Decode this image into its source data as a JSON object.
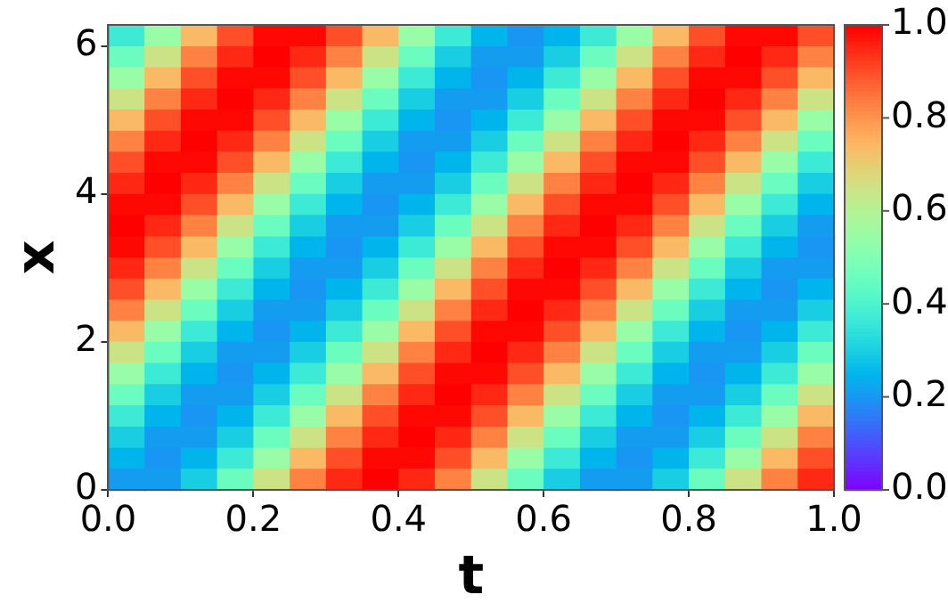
{
  "chart_data": {
    "type": "heatmap",
    "xlabel": "t",
    "ylabel": "x",
    "x": [
      0.025,
      0.075,
      0.125,
      0.175,
      0.225,
      0.275,
      0.325,
      0.375,
      0.425,
      0.475,
      0.525,
      0.575,
      0.625,
      0.675,
      0.725,
      0.775,
      0.825,
      0.875,
      0.925,
      0.975
    ],
    "y": [
      6.14,
      5.85,
      5.57,
      5.28,
      5.0,
      4.71,
      4.43,
      4.14,
      3.86,
      3.57,
      3.28,
      3.0,
      2.71,
      2.43,
      2.14,
      1.86,
      1.57,
      1.29,
      1.0,
      0.71,
      0.43,
      0.14
    ],
    "xlim": [
      0,
      1
    ],
    "xticks": [
      {
        "value": 0,
        "label": "0.0"
      },
      {
        "value": 0.2,
        "label": "0.2"
      },
      {
        "value": 0.4,
        "label": "0.4"
      },
      {
        "value": 0.6,
        "label": "0.6"
      },
      {
        "value": 0.8,
        "label": "0.8"
      },
      {
        "value": 1,
        "label": "1.0"
      }
    ],
    "ylim": [
      0,
      6.2832
    ],
    "yticks": [
      0,
      2,
      4,
      6
    ],
    "clim": [
      0,
      1
    ],
    "cticks": [
      {
        "value": 0,
        "label": "0.0"
      },
      {
        "value": 0.2,
        "label": "0.2"
      },
      {
        "value": 0.4,
        "label": "0.4"
      },
      {
        "value": 0.6,
        "label": "0.6"
      },
      {
        "value": 0.8,
        "label": "0.8"
      },
      {
        "value": 1,
        "label": "1.0"
      }
    ],
    "cells": [
      [
        0.37,
        0.55,
        0.74,
        0.9,
        0.99,
        0.99,
        0.9,
        0.74,
        0.55,
        0.37,
        0.25,
        0.2,
        0.25,
        0.37,
        0.55,
        0.74,
        0.9,
        0.99,
        0.99,
        0.9
      ],
      [
        0.46,
        0.65,
        0.83,
        0.95,
        1,
        0.95,
        0.83,
        0.65,
        0.46,
        0.3,
        0.21,
        0.21,
        0.3,
        0.46,
        0.65,
        0.83,
        0.95,
        1,
        0.95,
        0.83
      ],
      [
        0.55,
        0.74,
        0.9,
        0.99,
        0.99,
        0.9,
        0.74,
        0.55,
        0.37,
        0.25,
        0.2,
        0.25,
        0.37,
        0.55,
        0.74,
        0.9,
        0.99,
        0.99,
        0.9,
        0.74
      ],
      [
        0.65,
        0.83,
        0.95,
        1,
        0.95,
        0.83,
        0.65,
        0.46,
        0.3,
        0.21,
        0.21,
        0.3,
        0.46,
        0.65,
        0.83,
        0.95,
        1,
        0.95,
        0.83,
        0.65
      ],
      [
        0.74,
        0.9,
        0.99,
        0.99,
        0.9,
        0.74,
        0.55,
        0.37,
        0.25,
        0.2,
        0.25,
        0.37,
        0.55,
        0.74,
        0.9,
        0.99,
        0.99,
        0.9,
        0.74,
        0.55
      ],
      [
        0.83,
        0.95,
        1,
        0.95,
        0.83,
        0.65,
        0.46,
        0.3,
        0.21,
        0.21,
        0.3,
        0.46,
        0.65,
        0.83,
        0.95,
        1,
        0.95,
        0.83,
        0.65,
        0.46
      ],
      [
        0.9,
        0.99,
        0.99,
        0.9,
        0.74,
        0.55,
        0.37,
        0.25,
        0.2,
        0.25,
        0.37,
        0.55,
        0.74,
        0.9,
        0.99,
        0.99,
        0.9,
        0.74,
        0.55,
        0.37
      ],
      [
        0.95,
        1,
        0.95,
        0.83,
        0.65,
        0.46,
        0.3,
        0.21,
        0.21,
        0.3,
        0.46,
        0.65,
        0.83,
        0.95,
        1,
        0.95,
        0.83,
        0.65,
        0.46,
        0.3
      ],
      [
        0.99,
        0.99,
        0.9,
        0.74,
        0.55,
        0.37,
        0.25,
        0.2,
        0.25,
        0.37,
        0.55,
        0.74,
        0.9,
        0.99,
        0.99,
        0.9,
        0.74,
        0.55,
        0.37,
        0.25
      ],
      [
        1,
        0.95,
        0.83,
        0.65,
        0.46,
        0.3,
        0.21,
        0.21,
        0.3,
        0.46,
        0.65,
        0.83,
        0.95,
        1,
        0.95,
        0.83,
        0.65,
        0.46,
        0.3,
        0.21
      ],
      [
        0.99,
        0.9,
        0.74,
        0.55,
        0.37,
        0.25,
        0.2,
        0.25,
        0.37,
        0.55,
        0.74,
        0.9,
        0.99,
        0.99,
        0.9,
        0.74,
        0.55,
        0.37,
        0.25,
        0.2
      ],
      [
        0.95,
        0.83,
        0.65,
        0.46,
        0.3,
        0.21,
        0.21,
        0.3,
        0.46,
        0.65,
        0.83,
        0.95,
        1,
        0.95,
        0.83,
        0.65,
        0.46,
        0.3,
        0.21,
        0.21
      ],
      [
        0.9,
        0.74,
        0.55,
        0.37,
        0.25,
        0.2,
        0.25,
        0.37,
        0.55,
        0.74,
        0.9,
        0.99,
        0.99,
        0.9,
        0.74,
        0.55,
        0.37,
        0.25,
        0.2,
        0.25
      ],
      [
        0.83,
        0.65,
        0.46,
        0.3,
        0.21,
        0.21,
        0.3,
        0.46,
        0.65,
        0.83,
        0.95,
        1,
        0.95,
        0.83,
        0.65,
        0.46,
        0.3,
        0.21,
        0.21,
        0.3
      ],
      [
        0.74,
        0.55,
        0.37,
        0.25,
        0.2,
        0.25,
        0.37,
        0.55,
        0.74,
        0.9,
        0.99,
        0.99,
        0.9,
        0.74,
        0.55,
        0.37,
        0.25,
        0.2,
        0.25,
        0.37
      ],
      [
        0.65,
        0.46,
        0.3,
        0.21,
        0.21,
        0.3,
        0.46,
        0.65,
        0.83,
        0.95,
        1,
        0.95,
        0.83,
        0.65,
        0.46,
        0.3,
        0.21,
        0.21,
        0.3,
        0.46
      ],
      [
        0.55,
        0.37,
        0.25,
        0.2,
        0.25,
        0.37,
        0.55,
        0.74,
        0.9,
        0.99,
        0.99,
        0.9,
        0.74,
        0.55,
        0.37,
        0.25,
        0.2,
        0.25,
        0.37,
        0.55
      ],
      [
        0.46,
        0.3,
        0.21,
        0.21,
        0.3,
        0.46,
        0.65,
        0.83,
        0.95,
        1,
        0.95,
        0.83,
        0.65,
        0.46,
        0.3,
        0.21,
        0.21,
        0.3,
        0.46,
        0.65
      ],
      [
        0.37,
        0.25,
        0.2,
        0.25,
        0.37,
        0.55,
        0.74,
        0.9,
        0.99,
        0.99,
        0.9,
        0.74,
        0.55,
        0.37,
        0.25,
        0.2,
        0.25,
        0.37,
        0.55,
        0.74
      ],
      [
        0.3,
        0.21,
        0.21,
        0.3,
        0.46,
        0.65,
        0.83,
        0.95,
        1,
        0.95,
        0.83,
        0.65,
        0.46,
        0.3,
        0.21,
        0.21,
        0.3,
        0.46,
        0.65,
        0.83
      ],
      [
        0.25,
        0.2,
        0.25,
        0.37,
        0.55,
        0.74,
        0.9,
        0.99,
        0.99,
        0.9,
        0.74,
        0.55,
        0.37,
        0.25,
        0.2,
        0.25,
        0.37,
        0.55,
        0.74,
        0.9
      ],
      [
        0.21,
        0.21,
        0.3,
        0.46,
        0.65,
        0.83,
        0.95,
        1,
        0.95,
        0.83,
        0.65,
        0.46,
        0.3,
        0.21,
        0.21,
        0.3,
        0.46,
        0.65,
        0.83,
        0.95
      ]
    ]
  }
}
